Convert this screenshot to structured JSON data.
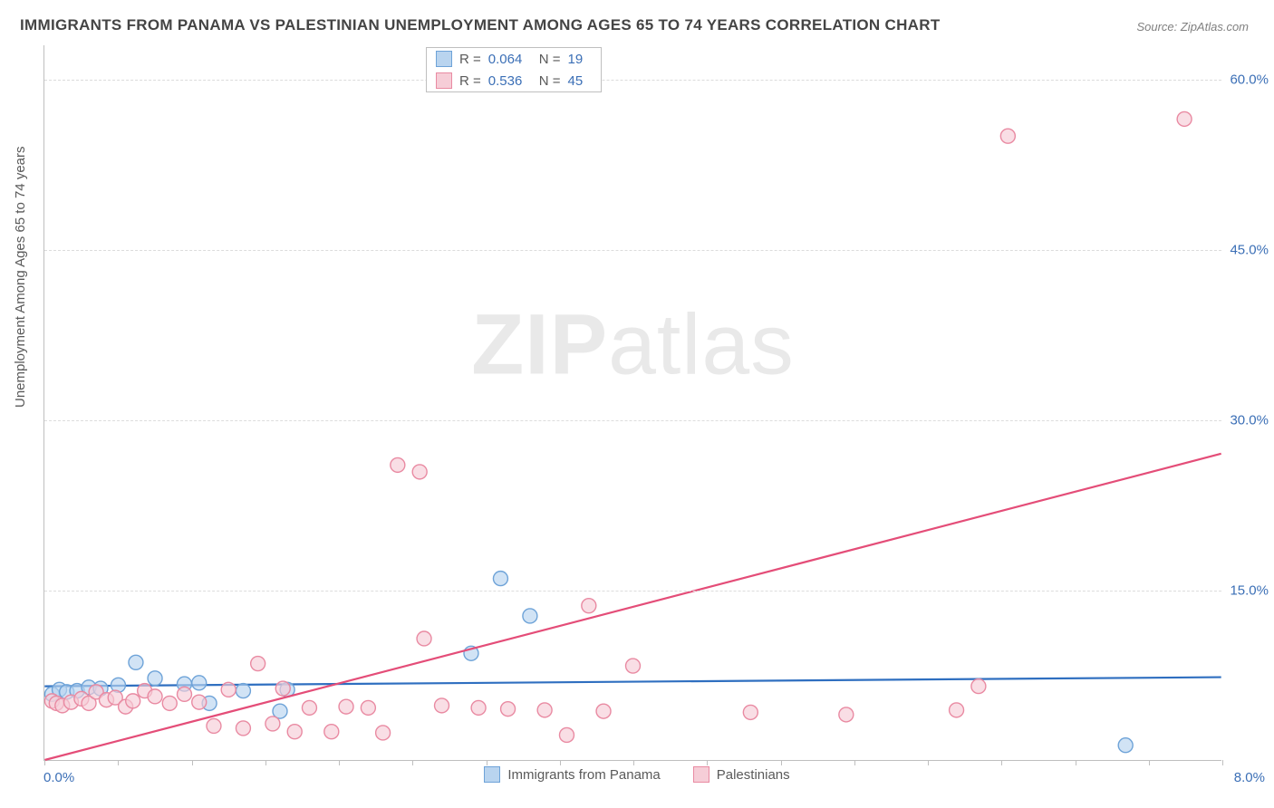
{
  "title": "IMMIGRANTS FROM PANAMA VS PALESTINIAN UNEMPLOYMENT AMONG AGES 65 TO 74 YEARS CORRELATION CHART",
  "source": "Source: ZipAtlas.com",
  "ylabel": "Unemployment Among Ages 65 to 74 years",
  "watermark_a": "ZIP",
  "watermark_b": "atlas",
  "chart": {
    "type": "scatter",
    "xlim": [
      0.0,
      8.0
    ],
    "ylim": [
      0.0,
      63.0
    ],
    "x_tick_label_min": "0.0%",
    "x_tick_label_max": "8.0%",
    "y_ticks": [
      15.0,
      30.0,
      45.0,
      60.0
    ],
    "y_tick_labels": [
      "15.0%",
      "30.0%",
      "45.0%",
      "60.0%"
    ],
    "x_minor_ticks": [
      0,
      0.5,
      1,
      1.5,
      2,
      2.5,
      3,
      3.5,
      4,
      4.5,
      5,
      5.5,
      6,
      6.5,
      7,
      7.5,
      8
    ],
    "background_color": "#ffffff",
    "grid_color": "#dcdcdc",
    "axis_color": "#bfbfbf",
    "marker_radius": 8,
    "marker_stroke_width": 1.4,
    "line_width": 2.2,
    "series": [
      {
        "name": "Immigrants from Panama",
        "fill": "#b9d4ef",
        "stroke": "#6ea3d8",
        "line_color": "#2f6fc0",
        "R": "0.064",
        "N": "19",
        "trend": {
          "x1": 0.0,
          "y1": 6.5,
          "x2": 8.0,
          "y2": 7.3
        },
        "points": [
          {
            "x": 0.05,
            "y": 5.8
          },
          {
            "x": 0.1,
            "y": 6.2
          },
          {
            "x": 0.15,
            "y": 6.0
          },
          {
            "x": 0.22,
            "y": 6.1
          },
          {
            "x": 0.3,
            "y": 6.4
          },
          {
            "x": 0.38,
            "y": 6.3
          },
          {
            "x": 0.5,
            "y": 6.6
          },
          {
            "x": 0.62,
            "y": 8.6
          },
          {
            "x": 0.75,
            "y": 7.2
          },
          {
            "x": 0.95,
            "y": 6.7
          },
          {
            "x": 1.05,
            "y": 6.8
          },
          {
            "x": 1.12,
            "y": 5.0
          },
          {
            "x": 1.35,
            "y": 6.1
          },
          {
            "x": 1.6,
            "y": 4.3
          },
          {
            "x": 1.65,
            "y": 6.2
          },
          {
            "x": 2.9,
            "y": 9.4
          },
          {
            "x": 3.1,
            "y": 16.0
          },
          {
            "x": 3.3,
            "y": 12.7
          },
          {
            "x": 7.35,
            "y": 1.3
          }
        ]
      },
      {
        "name": "Palestinians",
        "fill": "#f6cdd7",
        "stroke": "#e98aa2",
        "line_color": "#e44d78",
        "R": "0.536",
        "N": "45",
        "trend": {
          "x1": 0.0,
          "y1": 0.0,
          "x2": 8.0,
          "y2": 27.0
        },
        "points": [
          {
            "x": 0.05,
            "y": 5.2
          },
          {
            "x": 0.08,
            "y": 5.0
          },
          {
            "x": 0.12,
            "y": 4.8
          },
          {
            "x": 0.18,
            "y": 5.1
          },
          {
            "x": 0.25,
            "y": 5.4
          },
          {
            "x": 0.3,
            "y": 5.0
          },
          {
            "x": 0.35,
            "y": 6.0
          },
          {
            "x": 0.42,
            "y": 5.3
          },
          {
            "x": 0.48,
            "y": 5.5
          },
          {
            "x": 0.55,
            "y": 4.7
          },
          {
            "x": 0.6,
            "y": 5.2
          },
          {
            "x": 0.68,
            "y": 6.1
          },
          {
            "x": 0.75,
            "y": 5.6
          },
          {
            "x": 0.85,
            "y": 5.0
          },
          {
            "x": 0.95,
            "y": 5.8
          },
          {
            "x": 1.05,
            "y": 5.1
          },
          {
            "x": 1.15,
            "y": 3.0
          },
          {
            "x": 1.25,
            "y": 6.2
          },
          {
            "x": 1.35,
            "y": 2.8
          },
          {
            "x": 1.45,
            "y": 8.5
          },
          {
            "x": 1.55,
            "y": 3.2
          },
          {
            "x": 1.62,
            "y": 6.3
          },
          {
            "x": 1.7,
            "y": 2.5
          },
          {
            "x": 1.8,
            "y": 4.6
          },
          {
            "x": 1.95,
            "y": 2.5
          },
          {
            "x": 2.05,
            "y": 4.7
          },
          {
            "x": 2.2,
            "y": 4.6
          },
          {
            "x": 2.3,
            "y": 2.4
          },
          {
            "x": 2.4,
            "y": 26.0
          },
          {
            "x": 2.55,
            "y": 25.4
          },
          {
            "x": 2.58,
            "y": 10.7
          },
          {
            "x": 2.7,
            "y": 4.8
          },
          {
            "x": 2.95,
            "y": 4.6
          },
          {
            "x": 3.15,
            "y": 4.5
          },
          {
            "x": 3.4,
            "y": 4.4
          },
          {
            "x": 3.55,
            "y": 2.2
          },
          {
            "x": 3.7,
            "y": 13.6
          },
          {
            "x": 3.8,
            "y": 4.3
          },
          {
            "x": 4.0,
            "y": 8.3
          },
          {
            "x": 4.8,
            "y": 4.2
          },
          {
            "x": 5.45,
            "y": 4.0
          },
          {
            "x": 6.2,
            "y": 4.4
          },
          {
            "x": 6.35,
            "y": 6.5
          },
          {
            "x": 6.55,
            "y": 55.0
          },
          {
            "x": 7.75,
            "y": 56.5
          }
        ]
      }
    ]
  },
  "legend_bottom": [
    {
      "label": "Immigrants from Panama",
      "fill": "#b9d4ef",
      "stroke": "#6ea3d8"
    },
    {
      "label": "Palestinians",
      "fill": "#f6cdd7",
      "stroke": "#e98aa2"
    }
  ]
}
